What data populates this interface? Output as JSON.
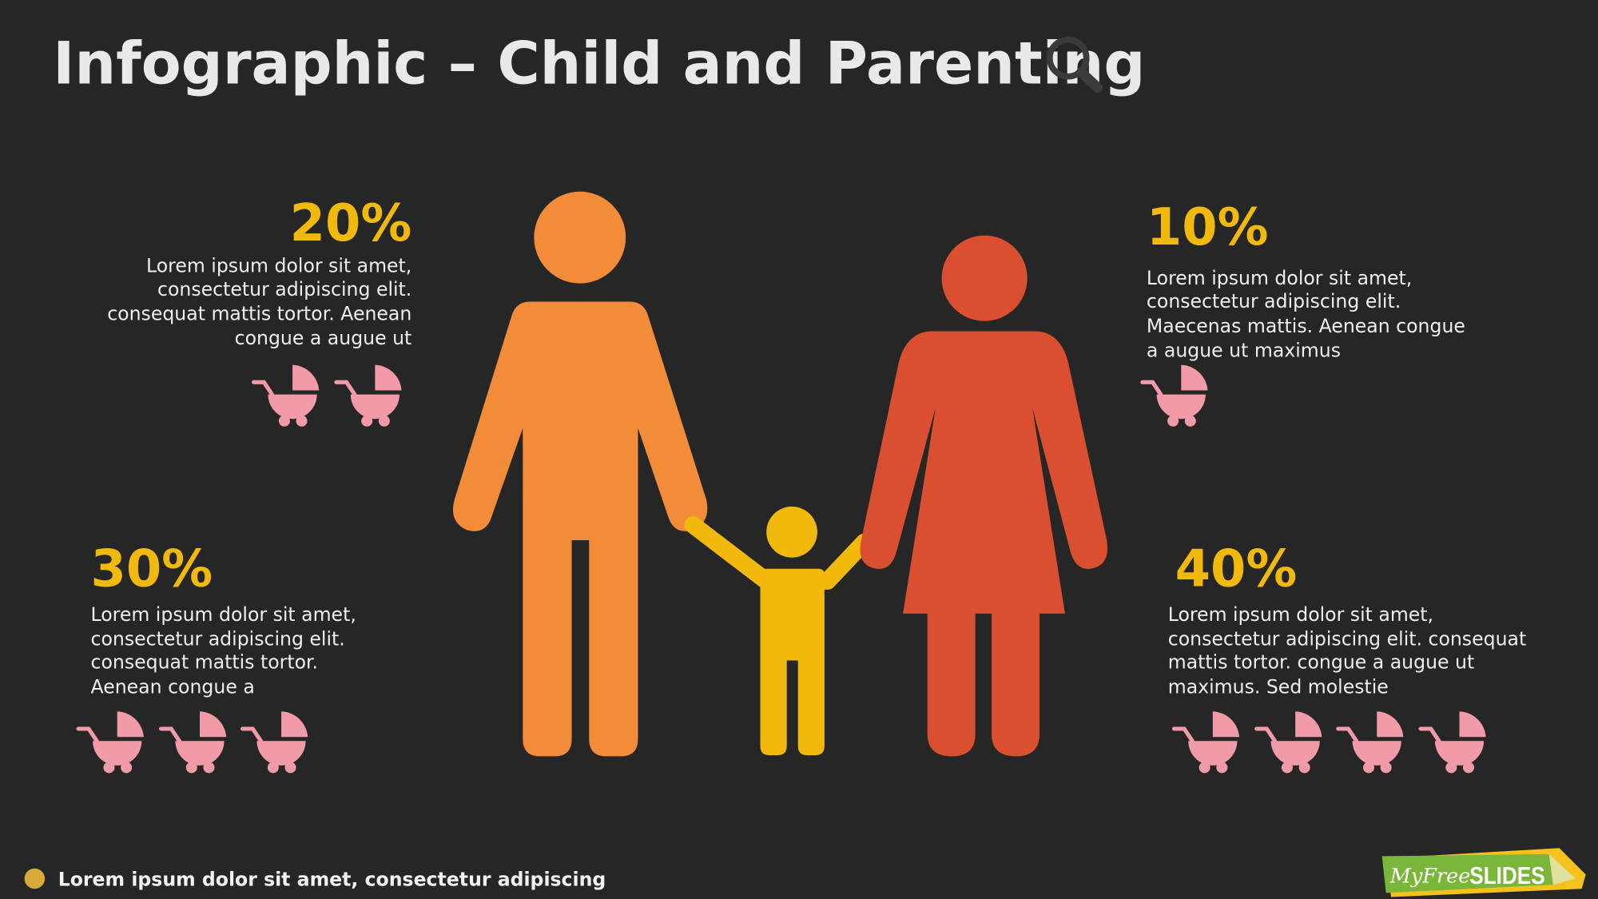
{
  "header": {
    "title": "Infographic – Child and Parenting"
  },
  "stats": [
    {
      "percent": "20%",
      "lines": [
        "Lorem ipsum dolor sit amet,",
        "consectetur adipiscing elit.",
        "consequat mattis tortor. Aenean",
        "congue a augue ut"
      ]
    },
    {
      "percent": "10%",
      "lines": [
        "Lorem ipsum dolor sit amet,",
        "consectetur adipiscing elit.",
        "Maecenas mattis. Aenean congue",
        "a augue ut maximus"
      ]
    },
    {
      "percent": "30%",
      "lines": [
        "Lorem ipsum dolor sit amet,",
        "consectetur adipiscing elit.",
        "consequat mattis tortor.",
        "Aenean congue a"
      ]
    },
    {
      "percent": "40%",
      "lines": [
        "Lorem ipsum dolor sit amet,",
        "consectetur adipiscing elit. consequat",
        "mattis tortor. congue a augue ut",
        "maximus. Sed molestie"
      ]
    }
  ],
  "footer": {
    "text": "Lorem ipsum dolor sit amet, consectetur adipiscing"
  },
  "logo": {
    "script": "MyFree",
    "bold": "SLIDES"
  }
}
